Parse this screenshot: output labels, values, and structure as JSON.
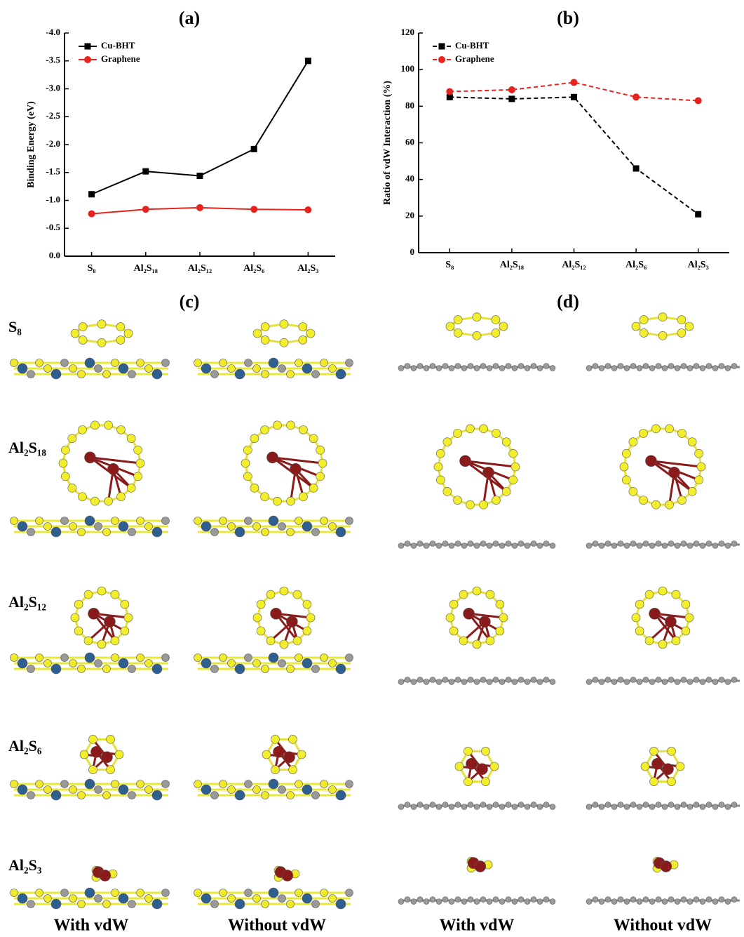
{
  "chart_data": [
    {
      "type": "line",
      "title": "(a)",
      "y_label": "Binding Energy (eV)",
      "categories": [
        "S₈",
        "Al₂S₁₈",
        "Al₂S₁₂",
        "Al₂S₆",
        "Al₂S₃"
      ],
      "series": [
        {
          "name": "Cu-BHT",
          "color": "#000000",
          "marker": "square",
          "line_style": "solid",
          "values": [
            -1.11,
            -1.52,
            -1.44,
            -1.92,
            -3.5
          ]
        },
        {
          "name": "Graphene",
          "color": "#e8221c",
          "marker": "circle",
          "line_style": "solid",
          "values": [
            -0.76,
            -0.84,
            -0.87,
            -0.84,
            -0.83
          ]
        }
      ],
      "ylim": [
        0,
        -4
      ],
      "yticks": [
        {
          "value": 0,
          "label": "0.0"
        },
        -0.5,
        {
          "value": -1,
          "label": "-1.0"
        },
        -1.5,
        {
          "value": -2,
          "label": "-2.0"
        },
        -2.5,
        {
          "value": -3,
          "label": "-3.0"
        },
        -3.5,
        {
          "value": -4,
          "label": "-4.0"
        }
      ],
      "legend": "top-left"
    },
    {
      "type": "line",
      "title": "(b)",
      "y_label": "Ratio of vdW Interaction (%)",
      "categories": [
        "S₈",
        "Al₂S₁₈",
        "Al₂S₁₂",
        "Al₂S₆",
        "Al₂S₃"
      ],
      "series": [
        {
          "name": "Cu-BHT",
          "color": "#000000",
          "marker": "square",
          "line_style": "dashed",
          "values": [
            85,
            84,
            85,
            46,
            21
          ]
        },
        {
          "name": "Graphene",
          "color": "#e8221c",
          "marker": "circle",
          "line_style": "dashed",
          "values": [
            88,
            89,
            93,
            85,
            83
          ]
        }
      ],
      "ylim": [
        0,
        120
      ],
      "yticks": [
        0,
        20,
        40,
        60,
        80,
        100,
        120
      ],
      "legend": "top-left"
    }
  ],
  "structures": {
    "panel_c": "(c)",
    "panel_d": "(d)",
    "rows": [
      "S₈",
      "Al₂S₁₈",
      "Al₂S₁₂",
      "Al₂S₆",
      "Al₂S₃"
    ],
    "columns": [
      "With vdW",
      "Without vdW",
      "With vdW",
      "Without vdW"
    ]
  }
}
